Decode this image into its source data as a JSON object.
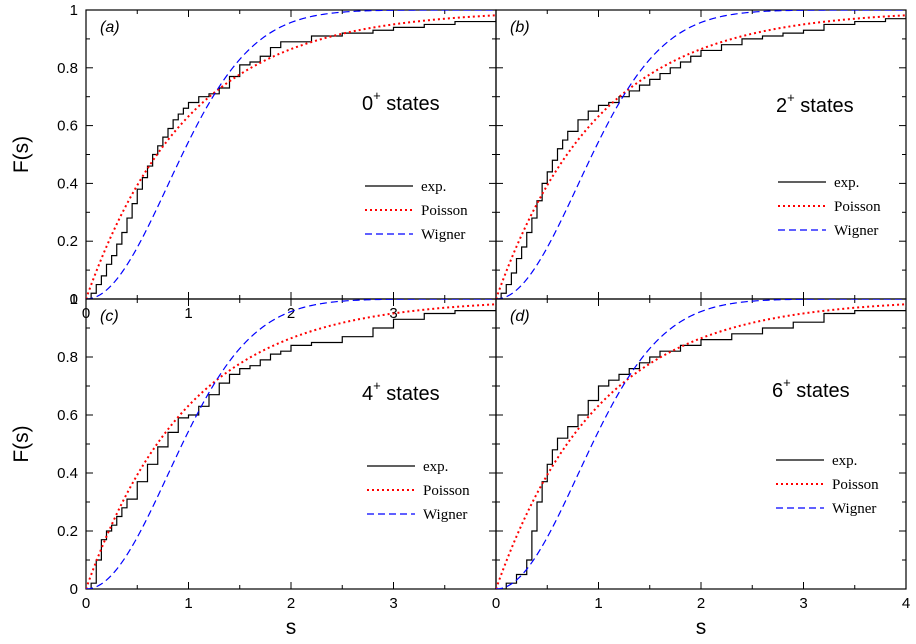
{
  "chart_data": [
    {
      "type": "line",
      "panel_label": "(a)",
      "state": {
        "base": "0",
        "sup": "+",
        "suffix": " states"
      },
      "xlim": [
        0,
        4
      ],
      "ylim": [
        0,
        1
      ],
      "xticks": [
        "0",
        "1",
        "2",
        "3"
      ],
      "yticks": [
        "0",
        "0.2",
        "0.4",
        "0.6",
        "0.8",
        "1"
      ],
      "ylabel": "F(s)",
      "xlabel": "",
      "series": [
        {
          "name": "exp.",
          "style": "step",
          "color": "#000000",
          "x": [
            0.05,
            0.1,
            0.15,
            0.2,
            0.25,
            0.3,
            0.35,
            0.4,
            0.45,
            0.5,
            0.55,
            0.6,
            0.65,
            0.7,
            0.75,
            0.8,
            0.85,
            0.9,
            0.95,
            1.0,
            1.1,
            1.2,
            1.3,
            1.4,
            1.5,
            1.6,
            1.7,
            1.8,
            1.9,
            2.0,
            2.2,
            2.5,
            2.8,
            3.0,
            3.3,
            3.6,
            4.0
          ],
          "y": [
            0.02,
            0.05,
            0.08,
            0.12,
            0.15,
            0.19,
            0.23,
            0.28,
            0.33,
            0.38,
            0.42,
            0.46,
            0.5,
            0.53,
            0.56,
            0.59,
            0.62,
            0.64,
            0.66,
            0.68,
            0.7,
            0.71,
            0.73,
            0.77,
            0.81,
            0.82,
            0.84,
            0.87,
            0.89,
            0.89,
            0.91,
            0.92,
            0.93,
            0.94,
            0.95,
            0.96,
            0.97
          ]
        },
        {
          "name": "Poisson",
          "style": "dotted",
          "color": "#ff0000",
          "func": "poisson"
        },
        {
          "name": "Wigner",
          "style": "dashed",
          "color": "#0000ff",
          "func": "wigner"
        }
      ]
    },
    {
      "type": "line",
      "panel_label": "(b)",
      "state": {
        "base": "2",
        "sup": "+",
        "suffix": " states"
      },
      "xlim": [
        0,
        4
      ],
      "ylim": [
        0,
        1
      ],
      "xticks": [],
      "yticks": [],
      "ylabel": "",
      "xlabel": "",
      "series": [
        {
          "name": "exp.",
          "style": "step",
          "color": "#000000",
          "x": [
            0.05,
            0.1,
            0.15,
            0.2,
            0.25,
            0.3,
            0.35,
            0.4,
            0.45,
            0.5,
            0.55,
            0.6,
            0.65,
            0.7,
            0.8,
            0.9,
            1.0,
            1.1,
            1.2,
            1.3,
            1.4,
            1.5,
            1.6,
            1.7,
            1.8,
            1.9,
            2.0,
            2.2,
            2.4,
            2.6,
            2.8,
            3.0,
            3.2,
            3.5,
            3.8,
            4.0
          ],
          "y": [
            0.02,
            0.05,
            0.09,
            0.14,
            0.18,
            0.23,
            0.28,
            0.34,
            0.4,
            0.44,
            0.48,
            0.52,
            0.55,
            0.58,
            0.62,
            0.65,
            0.67,
            0.68,
            0.7,
            0.72,
            0.74,
            0.76,
            0.78,
            0.8,
            0.82,
            0.84,
            0.86,
            0.88,
            0.9,
            0.91,
            0.92,
            0.93,
            0.95,
            0.96,
            0.97,
            0.98
          ]
        },
        {
          "name": "Poisson",
          "style": "dotted",
          "color": "#ff0000",
          "func": "poisson"
        },
        {
          "name": "Wigner",
          "style": "dashed",
          "color": "#0000ff",
          "func": "wigner"
        }
      ]
    },
    {
      "type": "line",
      "panel_label": "(c)",
      "state": {
        "base": "4",
        "sup": "+",
        "suffix": " states"
      },
      "xlim": [
        0,
        4
      ],
      "ylim": [
        0,
        1
      ],
      "xticks": [
        "0",
        "1",
        "2",
        "3"
      ],
      "yticks": [
        "0",
        "0.2",
        "0.4",
        "0.6",
        "0.8",
        "1"
      ],
      "ylabel": "F(s)",
      "xlabel": "s",
      "series": [
        {
          "name": "exp.",
          "style": "step",
          "color": "#000000",
          "x": [
            0.05,
            0.1,
            0.15,
            0.2,
            0.25,
            0.3,
            0.35,
            0.4,
            0.5,
            0.6,
            0.7,
            0.8,
            0.9,
            1.0,
            1.1,
            1.2,
            1.3,
            1.4,
            1.5,
            1.6,
            1.7,
            1.8,
            1.9,
            2.0,
            2.2,
            2.5,
            2.8,
            3.0,
            3.3,
            3.6,
            4.0
          ],
          "y": [
            0.02,
            0.1,
            0.17,
            0.2,
            0.22,
            0.25,
            0.28,
            0.31,
            0.37,
            0.43,
            0.49,
            0.54,
            0.59,
            0.6,
            0.63,
            0.67,
            0.71,
            0.74,
            0.76,
            0.77,
            0.79,
            0.81,
            0.82,
            0.84,
            0.85,
            0.87,
            0.9,
            0.93,
            0.95,
            0.96,
            0.97
          ]
        },
        {
          "name": "Poisson",
          "style": "dotted",
          "color": "#ff0000",
          "func": "poisson"
        },
        {
          "name": "Wigner",
          "style": "dashed",
          "color": "#0000ff",
          "func": "wigner"
        }
      ]
    },
    {
      "type": "line",
      "panel_label": "(d)",
      "state": {
        "base": "6",
        "sup": "+",
        "suffix": " states"
      },
      "xlim": [
        0,
        4
      ],
      "ylim": [
        0,
        1
      ],
      "xticks": [
        "0",
        "1",
        "2",
        "3",
        "4"
      ],
      "yticks": [],
      "ylabel": "",
      "xlabel": "s",
      "series": [
        {
          "name": "exp.",
          "style": "step",
          "color": "#000000",
          "x": [
            0.1,
            0.2,
            0.3,
            0.35,
            0.4,
            0.45,
            0.5,
            0.55,
            0.6,
            0.7,
            0.8,
            0.9,
            1.0,
            1.1,
            1.2,
            1.3,
            1.4,
            1.5,
            1.6,
            1.8,
            2.0,
            2.3,
            2.6,
            2.9,
            3.2,
            3.5,
            4.0
          ],
          "y": [
            0.02,
            0.05,
            0.1,
            0.2,
            0.3,
            0.37,
            0.43,
            0.48,
            0.52,
            0.56,
            0.6,
            0.65,
            0.7,
            0.72,
            0.74,
            0.76,
            0.78,
            0.8,
            0.82,
            0.84,
            0.86,
            0.88,
            0.9,
            0.92,
            0.95,
            0.96,
            0.97
          ]
        },
        {
          "name": "Poisson",
          "style": "dotted",
          "color": "#ff0000",
          "func": "poisson"
        },
        {
          "name": "Wigner",
          "style": "dashed",
          "color": "#0000ff",
          "func": "wigner"
        }
      ]
    }
  ]
}
